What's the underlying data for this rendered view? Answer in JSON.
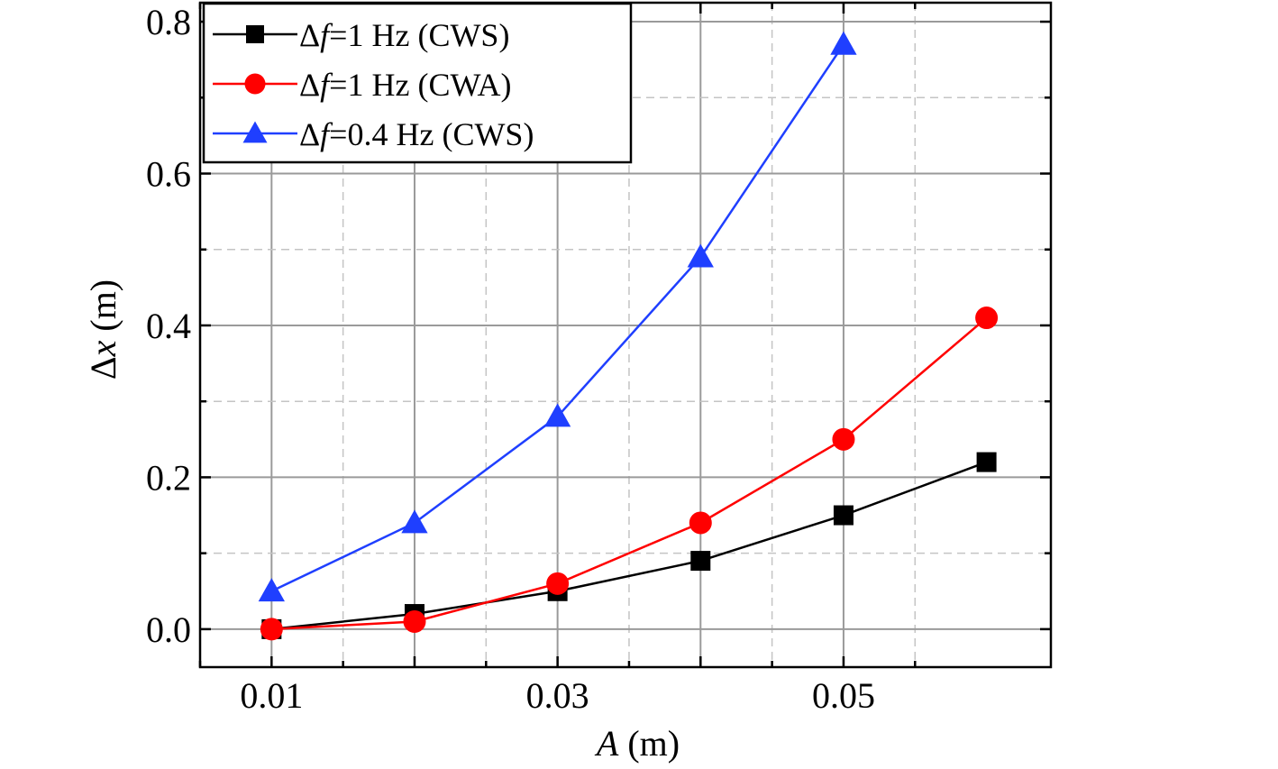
{
  "chart_data": {
    "type": "line",
    "title": "",
    "xlabel": {
      "symbol": "A",
      "unit": " (m)"
    },
    "ylabel": {
      "symbol": "x",
      "prefix": "Δ",
      "unit": " (m)"
    },
    "xlim": [
      0.005,
      0.0645
    ],
    "ylim": [
      -0.05,
      0.825
    ],
    "x_ticks": [
      0.01,
      0.03,
      0.05
    ],
    "x_tick_labels": [
      "0.01",
      "0.03",
      "0.05"
    ],
    "y_ticks": [
      0.0,
      0.2,
      0.4,
      0.6,
      0.8
    ],
    "y_tick_labels": [
      "0.0",
      "0.2",
      "0.4",
      "0.6",
      "0.8"
    ],
    "grid": true,
    "legend_position": "top-left",
    "series": [
      {
        "name": "Δf=1 Hz (CWS)",
        "legend": {
          "pre": "Δ",
          "var": "f",
          "post": "=1 Hz (CWS)"
        },
        "color": "#000000",
        "marker": "square",
        "x": [
          0.01,
          0.02,
          0.03,
          0.04,
          0.05,
          0.06
        ],
        "y": [
          0.0,
          0.02,
          0.05,
          0.09,
          0.15,
          0.22
        ]
      },
      {
        "name": "Δf=1 Hz (CWA)",
        "legend": {
          "pre": "Δ",
          "var": "f",
          "post": "=1 Hz (CWA)"
        },
        "color": "#ff0000",
        "marker": "circle",
        "x": [
          0.01,
          0.02,
          0.03,
          0.04,
          0.05,
          0.06
        ],
        "y": [
          0.0,
          0.01,
          0.06,
          0.14,
          0.25,
          0.41
        ]
      },
      {
        "name": "Δf=0.4 Hz (CWS)",
        "legend": {
          "pre": "Δ",
          "var": "f",
          "post": "=0.4 Hz (CWS)"
        },
        "color": "#1f3fff",
        "marker": "triangle",
        "x": [
          0.01,
          0.02,
          0.03,
          0.04,
          0.05
        ],
        "y": [
          0.05,
          0.14,
          0.28,
          0.49,
          0.77
        ]
      }
    ]
  }
}
